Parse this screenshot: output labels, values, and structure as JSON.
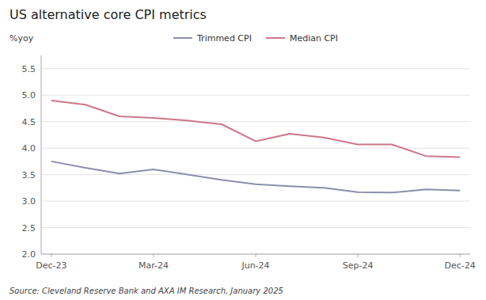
{
  "chart_data": {
    "type": "line",
    "title": "US alternative core CPI metrics",
    "y_label": "%yoy",
    "annotations": [
      "Source: Cleveland Reserve Bank and AXA IM Research, January 2025"
    ],
    "categories": [
      "Dec-23",
      null,
      null,
      "Mar-24",
      null,
      null,
      "Jun-24",
      null,
      null,
      "Sep-24",
      null,
      null,
      "Dec-24"
    ],
    "series": [
      {
        "name": "Trimmed CPI",
        "color": "#8b8faa",
        "values": [
          3.75,
          3.63,
          3.52,
          3.6,
          3.5,
          3.4,
          3.32,
          3.28,
          3.25,
          3.17,
          3.16,
          3.22,
          3.2
        ]
      },
      {
        "name": "Median CPI",
        "color": "#cc7788",
        "values": [
          4.9,
          4.82,
          4.6,
          4.57,
          4.52,
          4.45,
          4.13,
          4.27,
          4.2,
          4.07,
          4.07,
          3.85,
          3.83
        ]
      }
    ],
    "ylim": [
      2,
      5.75
    ],
    "yticks": [
      {
        "value": 2,
        "label": "2.0"
      },
      2.5,
      {
        "value": 3,
        "label": "3.0"
      },
      3.5,
      {
        "value": 4,
        "label": "4.0"
      },
      4.5,
      {
        "value": 5,
        "label": "5.0"
      },
      5.5
    ],
    "grid": true,
    "legend": "top"
  }
}
